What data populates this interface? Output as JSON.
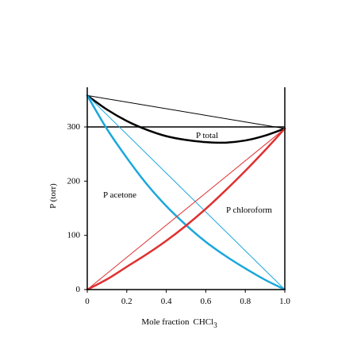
{
  "chart_data": {
    "type": "line",
    "xlabel": "Mole fraction",
    "xlabel_chem_base": "CHCl",
    "xlabel_chem_sub": "3",
    "ylabel": "P (torr)",
    "xlim": [
      0,
      1.0
    ],
    "ylim": [
      0,
      300
    ],
    "x_ticks": [
      "0",
      "0.2",
      "0.4",
      "0.6",
      "0.8",
      "1.0"
    ],
    "y_ticks": [
      "0",
      "100",
      "200",
      "300"
    ],
    "grid": false,
    "curve_labels": {
      "total": "P  total",
      "acetone": "P  acetone",
      "chloroform": "P  chloroform"
    },
    "colors": {
      "acetone": "#1aa7dc",
      "chloroform": "#e03030",
      "total": "#000000",
      "axes": "#000000"
    },
    "series": [
      {
        "id": "p_total_ideal",
        "color": "#000000",
        "style": "thin",
        "x": [
          0,
          1.0
        ],
        "y": [
          358,
          297
        ]
      },
      {
        "id": "p_total",
        "color": "#000000",
        "style": "thick",
        "x": [
          0,
          0.1,
          0.2,
          0.3,
          0.4,
          0.5,
          0.6,
          0.7,
          0.8,
          0.9,
          1.0
        ],
        "y": [
          358,
          332,
          311,
          295,
          283,
          276,
          272,
          271,
          275,
          284,
          297
        ]
      },
      {
        "id": "p_acetone_ideal",
        "color": "#1aa7dc",
        "style": "thin",
        "x": [
          0,
          1.0
        ],
        "y": [
          358,
          0
        ]
      },
      {
        "id": "p_acetone",
        "color": "#1aa7dc",
        "style": "thick",
        "x": [
          0,
          0.1,
          0.2,
          0.3,
          0.4,
          0.5,
          0.6,
          0.7,
          0.8,
          0.9,
          1.0
        ],
        "y": [
          358,
          296,
          243,
          195,
          154,
          119,
          88,
          62,
          39,
          18,
          0
        ]
      },
      {
        "id": "p_chloroform_ideal",
        "color": "#e03030",
        "style": "thin",
        "x": [
          0,
          1.0
        ],
        "y": [
          0,
          297
        ]
      },
      {
        "id": "p_chloroform",
        "color": "#e03030",
        "style": "thick",
        "x": [
          0,
          0.1,
          0.2,
          0.3,
          0.4,
          0.5,
          0.6,
          0.7,
          0.8,
          0.9,
          1.0
        ],
        "y": [
          0,
          19,
          42,
          65,
          90,
          118,
          149,
          183,
          219,
          257,
          297
        ]
      }
    ],
    "reference_line_y": 300
  }
}
